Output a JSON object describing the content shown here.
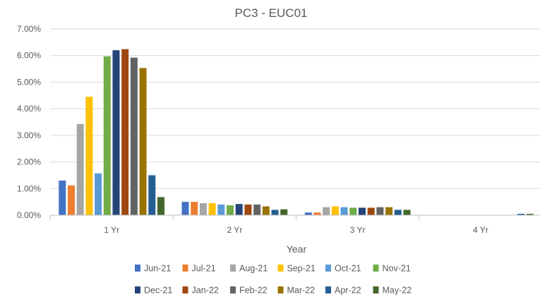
{
  "chart_data": {
    "type": "bar",
    "title": "PC3 - EUC01",
    "xlabel": "Year",
    "ylabel": "",
    "ylim": [
      0,
      0.07
    ],
    "y_ticks": [
      "0.00%",
      "1.00%",
      "2.00%",
      "3.00%",
      "4.00%",
      "5.00%",
      "6.00%",
      "7.00%"
    ],
    "y_tick_values": [
      0,
      0.01,
      0.02,
      0.03,
      0.04,
      0.05,
      0.06,
      0.07
    ],
    "grid": true,
    "legend_position": "bottom",
    "categories": [
      "1 Yr",
      "2 Yr",
      "3 Yr",
      "4 Yr"
    ],
    "series": [
      {
        "name": "Jun-21",
        "color": "#4472C4",
        "values": [
          0.013,
          0.005,
          0.001,
          0
        ]
      },
      {
        "name": "Jul-21",
        "color": "#ED7D31",
        "values": [
          0.0112,
          0.005,
          0.001,
          0
        ]
      },
      {
        "name": "Aug-21",
        "color": "#A5A5A5",
        "values": [
          0.0343,
          0.0045,
          0.003,
          0
        ]
      },
      {
        "name": "Sep-21",
        "color": "#FFC000",
        "values": [
          0.0445,
          0.0045,
          0.0033,
          0
        ]
      },
      {
        "name": "Oct-21",
        "color": "#5B9BD5",
        "values": [
          0.0157,
          0.004,
          0.003,
          0
        ]
      },
      {
        "name": "Nov-21",
        "color": "#70AD47",
        "values": [
          0.0597,
          0.0037,
          0.0028,
          0
        ]
      },
      {
        "name": "Dec-21",
        "color": "#264478",
        "values": [
          0.062,
          0.0042,
          0.0028,
          0
        ]
      },
      {
        "name": "Jan-22",
        "color": "#9E480E",
        "values": [
          0.0624,
          0.004,
          0.0028,
          0
        ]
      },
      {
        "name": "Feb-22",
        "color": "#636363",
        "values": [
          0.0592,
          0.004,
          0.003,
          0
        ]
      },
      {
        "name": "Mar-22",
        "color": "#997300",
        "values": [
          0.0553,
          0.0033,
          0.003,
          0
        ]
      },
      {
        "name": "Apr-22",
        "color": "#255E91",
        "values": [
          0.015,
          0.002,
          0.002,
          0.0005
        ]
      },
      {
        "name": "May-22",
        "color": "#43682B",
        "values": [
          0.0068,
          0.0022,
          0.002,
          0.0005
        ]
      }
    ],
    "colors": {
      "text": "#595959",
      "gridline": "#D9D9D9",
      "axis": "#BFBFBF",
      "background": "#FFFFFF"
    }
  }
}
